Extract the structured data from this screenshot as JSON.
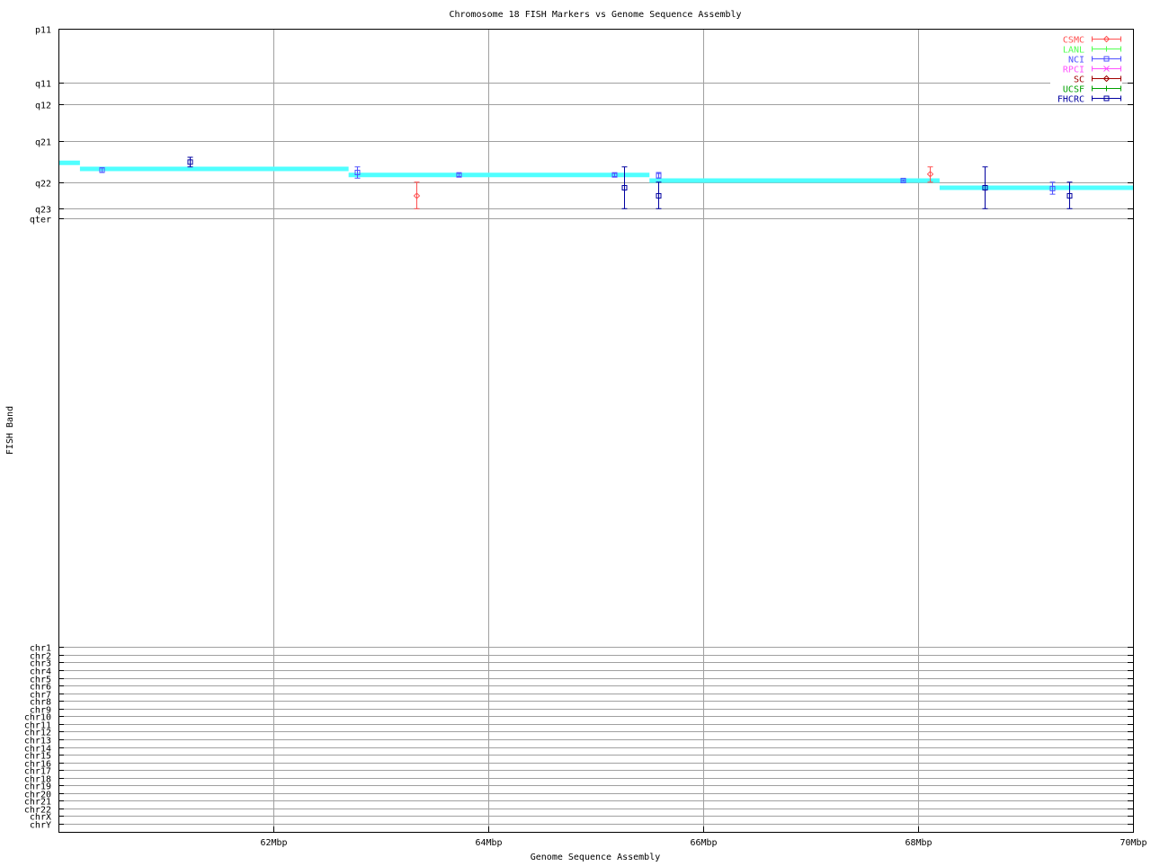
{
  "chart_data": {
    "type": "scatter",
    "title": "Chromosome 18 FISH Markers vs Genome Sequence Assembly",
    "xlabel": "Genome Sequence Assembly",
    "ylabel": "FISH Band",
    "xlim": [
      60,
      70
    ],
    "ylim": [
      0,
      100
    ],
    "grid": true,
    "legend_position": "top-right",
    "x_ticks": [
      {
        "value": 62,
        "label": "62Mbp"
      },
      {
        "value": 64,
        "label": "64Mbp"
      },
      {
        "value": 66,
        "label": "66Mbp"
      },
      {
        "value": 68,
        "label": "68Mbp"
      },
      {
        "value": 70,
        "label": "70Mbp"
      }
    ],
    "y_ticks": [
      {
        "value": 100,
        "label": "p11"
      },
      {
        "value": 93.3,
        "label": "q11"
      },
      {
        "value": 90.6,
        "label": "q12"
      },
      {
        "value": 86.0,
        "label": "q21"
      },
      {
        "value": 80.9,
        "label": "q22"
      },
      {
        "value": 77.6,
        "label": "q23"
      },
      {
        "value": 76.4,
        "label": "qter"
      },
      {
        "value": 23.0,
        "label": "chr1"
      },
      {
        "value": 22.04,
        "label": "chr2"
      },
      {
        "value": 21.09,
        "label": "chr3"
      },
      {
        "value": 20.13,
        "label": "chr4"
      },
      {
        "value": 19.17,
        "label": "chr5"
      },
      {
        "value": 18.22,
        "label": "chr6"
      },
      {
        "value": 17.26,
        "label": "chr7"
      },
      {
        "value": 16.3,
        "label": "chr8"
      },
      {
        "value": 15.35,
        "label": "chr9"
      },
      {
        "value": 14.39,
        "label": "chr10"
      },
      {
        "value": 13.43,
        "label": "chr11"
      },
      {
        "value": 12.48,
        "label": "chr12"
      },
      {
        "value": 11.52,
        "label": "chr13"
      },
      {
        "value": 10.57,
        "label": "chr14"
      },
      {
        "value": 9.61,
        "label": "chr15"
      },
      {
        "value": 8.65,
        "label": "chr16"
      },
      {
        "value": 7.7,
        "label": "chr17"
      },
      {
        "value": 6.74,
        "label": "chr18"
      },
      {
        "value": 5.78,
        "label": "chr19"
      },
      {
        "value": 4.83,
        "label": "chr20"
      },
      {
        "value": 3.87,
        "label": "chr21"
      },
      {
        "value": 2.91,
        "label": "chr22"
      },
      {
        "value": 1.96,
        "label": "chrX"
      },
      {
        "value": 1.0,
        "label": "chrY"
      }
    ],
    "assembly_color": "#50ffff",
    "assembly_segments": [
      {
        "x0": 60.0,
        "x1": 60.2,
        "y": 83.3
      },
      {
        "x0": 60.2,
        "x1": 62.7,
        "y": 82.55
      },
      {
        "x0": 62.7,
        "x1": 65.5,
        "y": 81.8
      },
      {
        "x0": 65.5,
        "x1": 68.2,
        "y": 81.1
      },
      {
        "x0": 68.2,
        "x1": 70.0,
        "y": 80.2
      }
    ],
    "series": [
      {
        "name": "CSMC",
        "color": "#ff5050",
        "marker": "diamond",
        "points": [
          {
            "x": 63.33,
            "y": 79.2,
            "ylo": 77.6,
            "yhi": 80.9
          },
          {
            "x": 68.11,
            "y": 81.9,
            "ylo": 80.9,
            "yhi": 82.8
          }
        ]
      },
      {
        "name": "LANL",
        "color": "#50ff50",
        "marker": "plus",
        "points": []
      },
      {
        "name": "NCI",
        "color": "#5050ff",
        "marker": "square",
        "points": [
          {
            "x": 60.4,
            "y": 82.4,
            "ylo": 82.1,
            "yhi": 82.7
          },
          {
            "x": 62.78,
            "y": 82.1,
            "ylo": 81.4,
            "yhi": 82.8
          },
          {
            "x": 63.72,
            "y": 81.8,
            "ylo": 81.6,
            "yhi": 82.0
          },
          {
            "x": 65.17,
            "y": 81.8,
            "ylo": 81.6,
            "yhi": 82.0
          },
          {
            "x": 65.58,
            "y": 81.7,
            "ylo": 81.4,
            "yhi": 82.1
          },
          {
            "x": 67.86,
            "y": 81.1,
            "ylo": 81.0,
            "yhi": 81.2
          },
          {
            "x": 69.25,
            "y": 80.1,
            "ylo": 79.4,
            "yhi": 80.9
          }
        ]
      },
      {
        "name": "RPCI",
        "color": "#ff50ff",
        "marker": "cross",
        "points": []
      },
      {
        "name": "SC",
        "color": "#a00000",
        "marker": "diamond",
        "points": []
      },
      {
        "name": "UCSF",
        "color": "#00a000",
        "marker": "plus",
        "points": []
      },
      {
        "name": "FHCRC",
        "color": "#0000a0",
        "marker": "square",
        "points": [
          {
            "x": 61.22,
            "y": 83.4,
            "ylo": 82.8,
            "yhi": 84.0
          },
          {
            "x": 65.26,
            "y": 80.2,
            "ylo": 77.6,
            "yhi": 82.8
          },
          {
            "x": 65.58,
            "y": 79.2,
            "ylo": 77.6,
            "yhi": 80.9
          },
          {
            "x": 68.62,
            "y": 80.2,
            "ylo": 77.6,
            "yhi": 82.8
          },
          {
            "x": 69.41,
            "y": 79.2,
            "ylo": 77.6,
            "yhi": 80.9
          }
        ]
      }
    ]
  }
}
